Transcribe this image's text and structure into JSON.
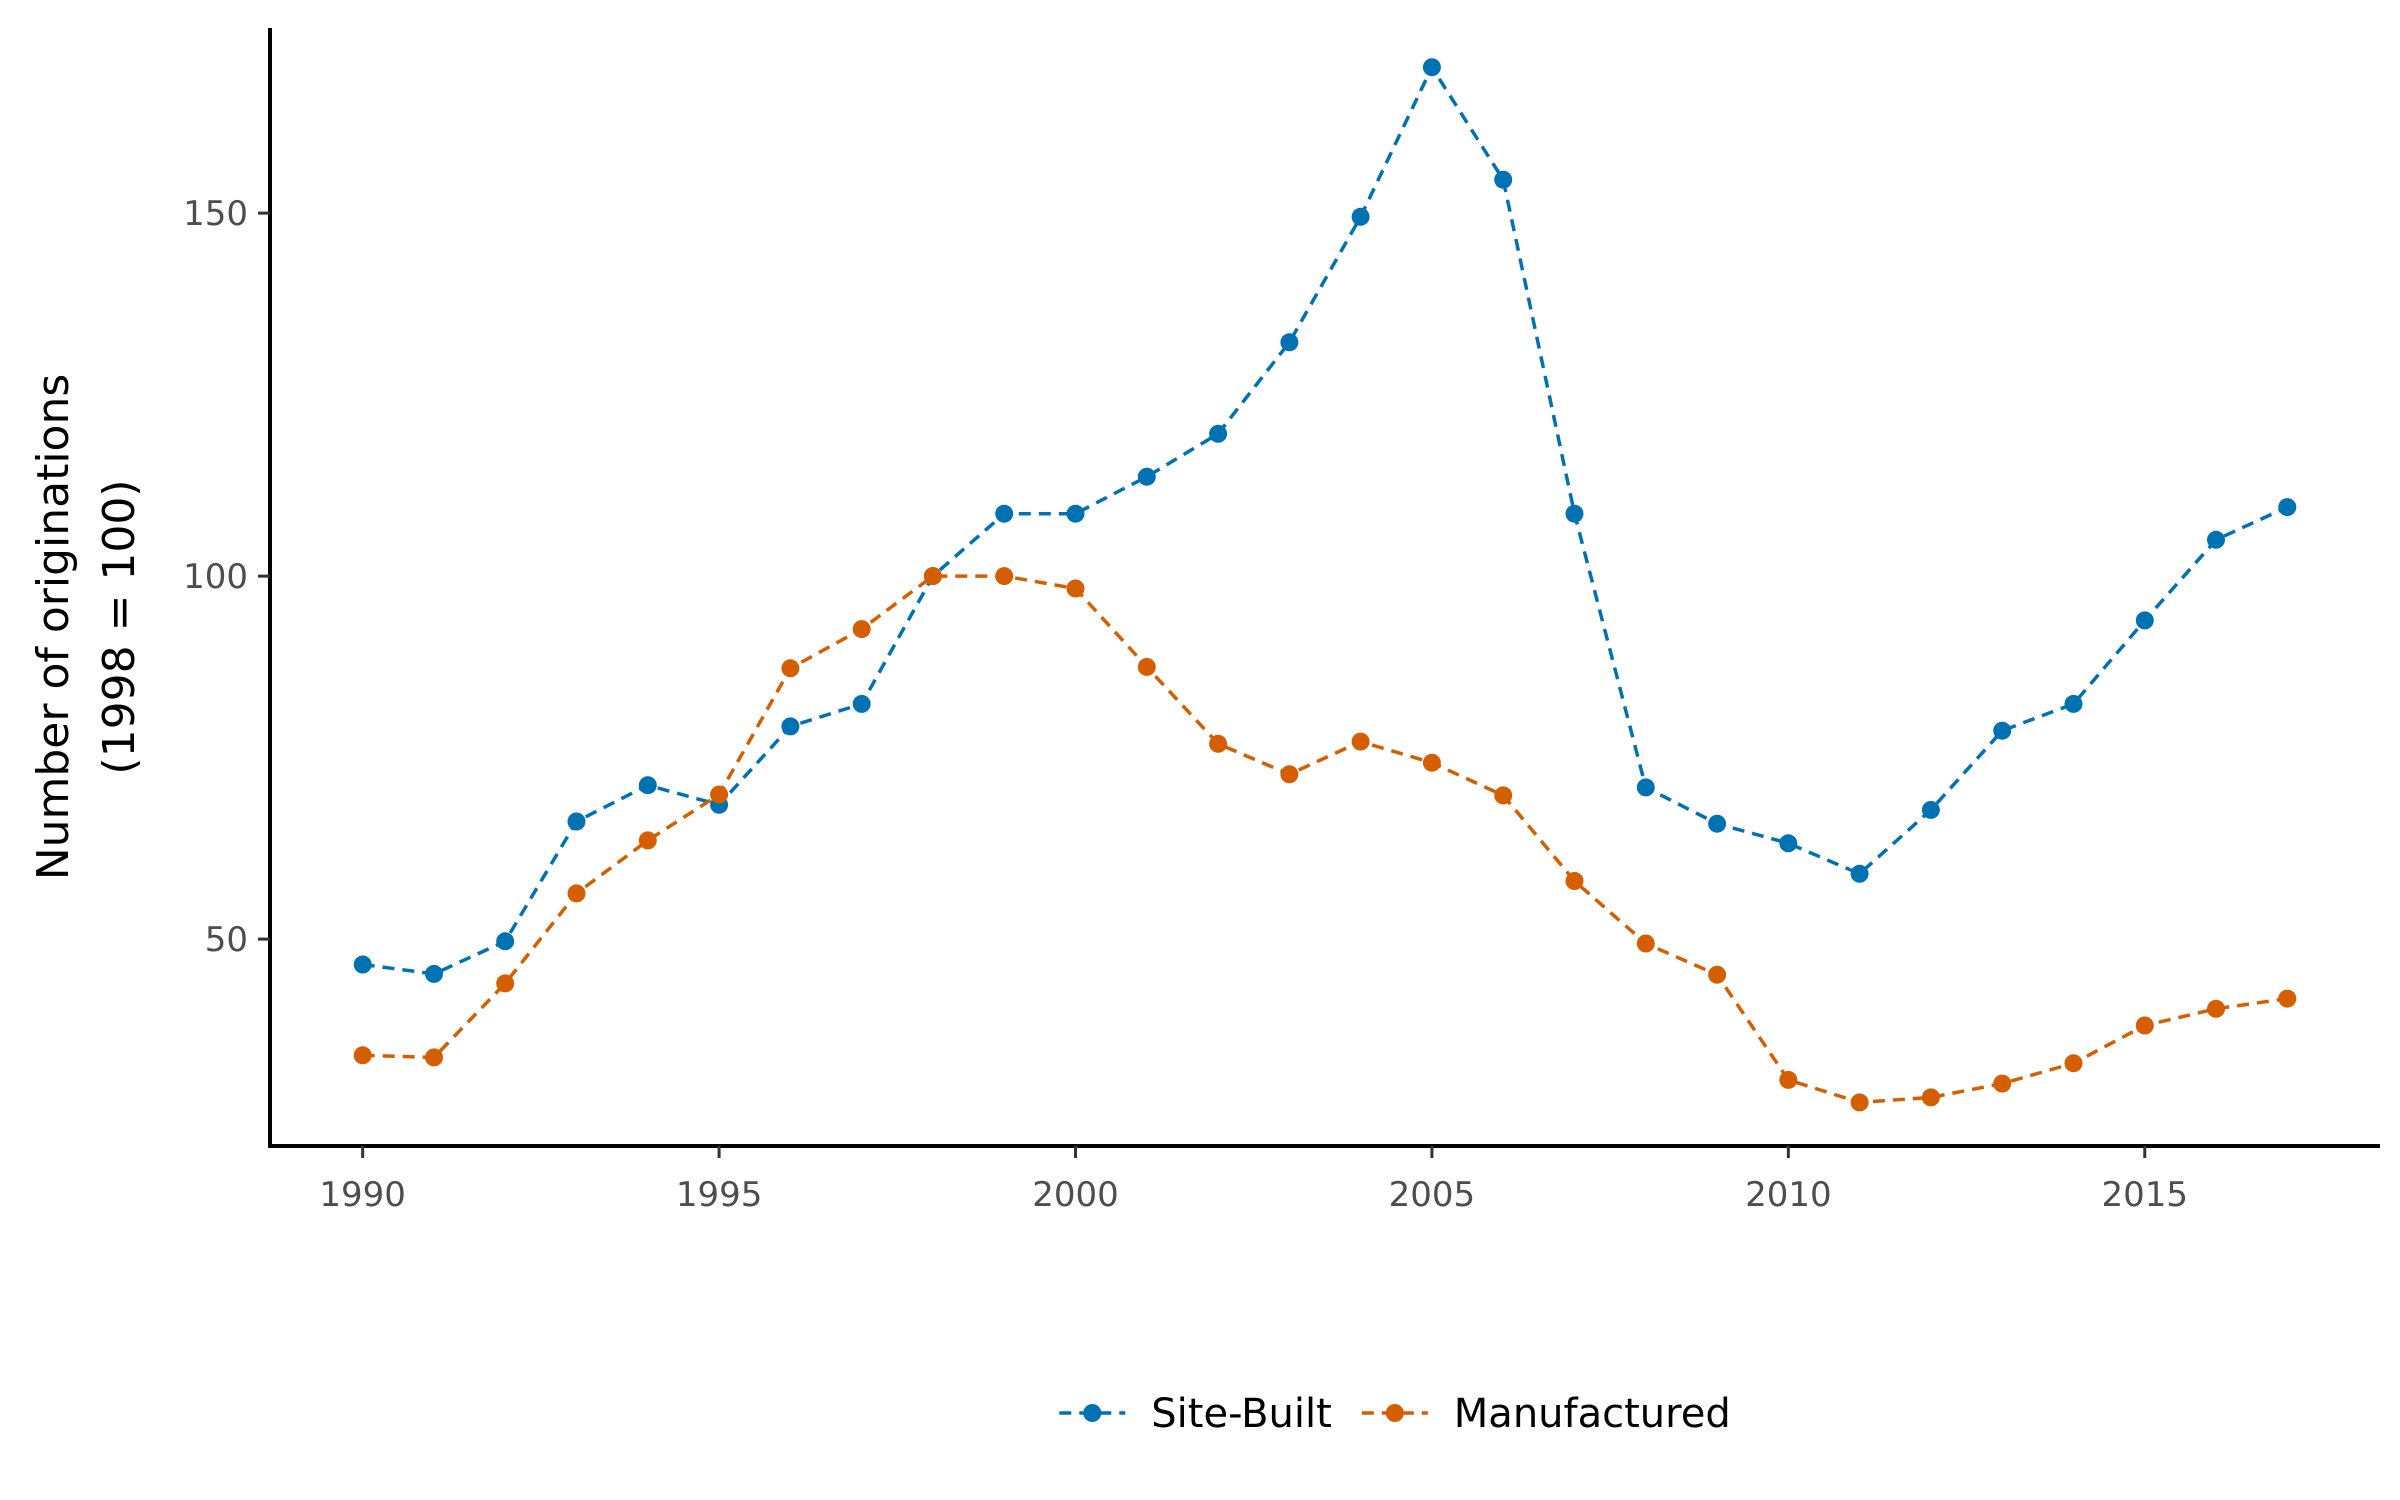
{
  "chart_data": {
    "type": "line",
    "title": "",
    "xlabel": "",
    "ylabel": "Number of originations\n(1998 = 100)",
    "x": [
      1990,
      1991,
      1992,
      1993,
      1994,
      1995,
      1996,
      1997,
      1998,
      1999,
      2000,
      2001,
      2002,
      2003,
      2004,
      2005,
      2006,
      2007,
      2008,
      2009,
      2010,
      2011,
      2012,
      2013,
      2014,
      2015,
      2016,
      2017
    ],
    "series": [
      {
        "name": "Site-Built",
        "color": "#0072B2",
        "line_style": "dashed",
        "values": [
          46.5,
          45.2,
          49.7,
          66.2,
          71.2,
          68.5,
          79.3,
          82.4,
          100.0,
          108.6,
          108.6,
          113.7,
          119.6,
          132.2,
          149.5,
          170.1,
          154.6,
          108.6,
          70.9,
          65.9,
          63.2,
          59.0,
          67.8,
          78.7,
          82.4,
          93.9,
          105.0,
          109.5
        ]
      },
      {
        "name": "Manufactured",
        "color": "#D55E00",
        "line_style": "dashed",
        "values": [
          34.0,
          33.7,
          43.9,
          56.3,
          63.6,
          69.9,
          87.3,
          92.7,
          100.0,
          100.0,
          98.3,
          87.5,
          76.9,
          72.7,
          77.2,
          74.3,
          69.8,
          58.0,
          49.4,
          45.1,
          30.6,
          27.5,
          28.2,
          30.1,
          32.9,
          38.1,
          40.4,
          41.8
        ]
      }
    ],
    "xlim": [
      1988.7,
      2018.3
    ],
    "ylim": [
      21.5,
      175.5
    ],
    "x_ticks": [
      1990,
      1995,
      2000,
      2005,
      2010,
      2015
    ],
    "y_ticks": [
      50,
      100,
      150
    ],
    "grid": false,
    "legend_position": "bottom"
  }
}
